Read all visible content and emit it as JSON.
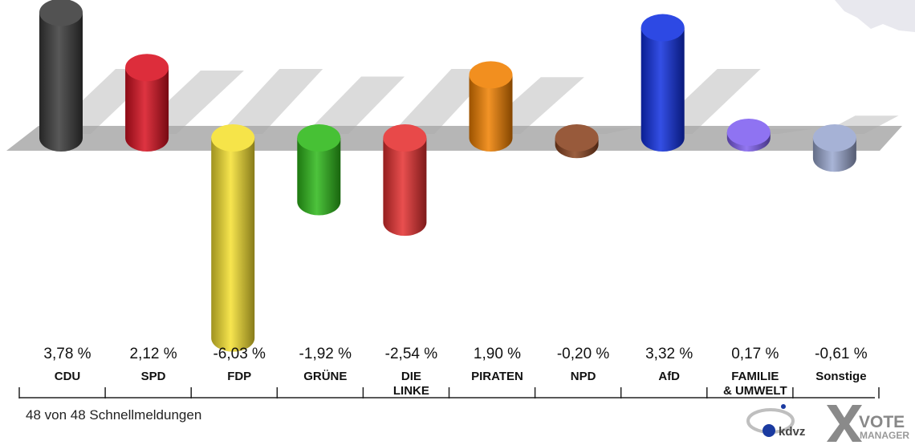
{
  "chart_data": {
    "type": "bar",
    "categories": [
      [
        "CDU"
      ],
      [
        "SPD"
      ],
      [
        "FDP"
      ],
      [
        "GRÜNE"
      ],
      [
        "DIE",
        "LINKE"
      ],
      [
        "PIRATEN"
      ],
      [
        "NPD"
      ],
      [
        "AfD"
      ],
      [
        "FAMILIE",
        "& UMWELT"
      ],
      [
        "Sonstige"
      ]
    ],
    "values": [
      3.78,
      2.12,
      -6.03,
      -1.92,
      -2.54,
      1.9,
      -0.2,
      3.32,
      0.17,
      -0.61
    ],
    "value_labels": [
      "3,78 %",
      "2,12 %",
      "-6,03 %",
      "-1,92 %",
      "-2,54 %",
      "1,90 %",
      "-0,20 %",
      "3,32 %",
      "0,17 %",
      "-0,61 %"
    ],
    "colors": [
      "#3a3a3a",
      "#d81020",
      "#f5e030",
      "#2eb81a",
      "#e53030",
      "#f08000",
      "#8a4420",
      "#1030e0",
      "#8060f0",
      "#9aa8d0"
    ],
    "ylim": [
      -6.03,
      3.78
    ]
  },
  "footer": {
    "note": "48 von 48 Schnellmeldungen"
  },
  "logo": {
    "brand": "kdvz",
    "product_line1": "VOTE",
    "product_line2": "MANAGER"
  }
}
